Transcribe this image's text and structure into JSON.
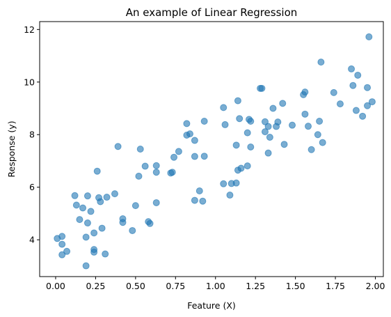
{
  "chart_data": {
    "type": "scatter",
    "title": "An example of Linear Regression",
    "xlabel": "Feature (X)",
    "ylabel": "Response (y)",
    "xlim": [
      -0.1,
      2.05
    ],
    "ylim": [
      2.6,
      12.3
    ],
    "xticks": [
      0.0,
      0.25,
      0.5,
      0.75,
      1.0,
      1.25,
      1.5,
      1.75,
      2.0
    ],
    "xtick_labels": [
      "0.00",
      "0.25",
      "0.50",
      "0.75",
      "1.00",
      "1.25",
      "1.50",
      "1.75",
      "2.00"
    ],
    "yticks": [
      4,
      6,
      8,
      10,
      12
    ],
    "ytick_labels": [
      "4",
      "6",
      "8",
      "10",
      "12"
    ],
    "grid": false,
    "color": "#1f77b4",
    "series": [
      {
        "points": [
          [
            0.01,
            4.05
          ],
          [
            0.04,
            4.13
          ],
          [
            0.04,
            3.83
          ],
          [
            0.04,
            3.43
          ],
          [
            0.07,
            3.56
          ],
          [
            0.12,
            5.68
          ],
          [
            0.13,
            5.32
          ],
          [
            0.15,
            4.77
          ],
          [
            0.17,
            5.21
          ],
          [
            0.19,
            4.1
          ],
          [
            0.19,
            3.01
          ],
          [
            0.2,
            5.67
          ],
          [
            0.2,
            4.64
          ],
          [
            0.22,
            5.08
          ],
          [
            0.24,
            4.26
          ],
          [
            0.24,
            3.63
          ],
          [
            0.24,
            3.53
          ],
          [
            0.26,
            6.61
          ],
          [
            0.27,
            5.6
          ],
          [
            0.28,
            5.45
          ],
          [
            0.29,
            4.44
          ],
          [
            0.31,
            3.46
          ],
          [
            0.32,
            5.62
          ],
          [
            0.37,
            5.75
          ],
          [
            0.39,
            7.55
          ],
          [
            0.42,
            4.8
          ],
          [
            0.42,
            4.66
          ],
          [
            0.48,
            4.35
          ],
          [
            0.5,
            5.3
          ],
          [
            0.52,
            6.42
          ],
          [
            0.53,
            7.45
          ],
          [
            0.56,
            6.8
          ],
          [
            0.58,
            4.69
          ],
          [
            0.59,
            4.62
          ],
          [
            0.63,
            6.57
          ],
          [
            0.63,
            6.82
          ],
          [
            0.63,
            5.41
          ],
          [
            0.72,
            6.54
          ],
          [
            0.73,
            6.57
          ],
          [
            0.74,
            7.14
          ],
          [
            0.77,
            7.36
          ],
          [
            0.82,
            7.98
          ],
          [
            0.82,
            8.42
          ],
          [
            0.84,
            8.03
          ],
          [
            0.87,
            7.78
          ],
          [
            0.87,
            7.17
          ],
          [
            0.87,
            5.5
          ],
          [
            0.9,
            5.86
          ],
          [
            0.92,
            5.47
          ],
          [
            0.93,
            7.18
          ],
          [
            0.93,
            8.51
          ],
          [
            1.05,
            9.03
          ],
          [
            1.05,
            6.13
          ],
          [
            1.06,
            8.38
          ],
          [
            1.09,
            5.7
          ],
          [
            1.1,
            6.14
          ],
          [
            1.13,
            6.16
          ],
          [
            1.13,
            7.6
          ],
          [
            1.14,
            6.65
          ],
          [
            1.14,
            9.29
          ],
          [
            1.15,
            8.61
          ],
          [
            1.16,
            6.72
          ],
          [
            1.2,
            6.81
          ],
          [
            1.2,
            8.07
          ],
          [
            1.21,
            8.58
          ],
          [
            1.22,
            8.51
          ],
          [
            1.22,
            7.53
          ],
          [
            1.28,
            9.76
          ],
          [
            1.29,
            9.76
          ],
          [
            1.31,
            8.49
          ],
          [
            1.31,
            8.11
          ],
          [
            1.33,
            8.31
          ],
          [
            1.33,
            7.3
          ],
          [
            1.34,
            7.9
          ],
          [
            1.36,
            9.0
          ],
          [
            1.38,
            8.31
          ],
          [
            1.39,
            8.48
          ],
          [
            1.42,
            9.19
          ],
          [
            1.43,
            7.63
          ],
          [
            1.48,
            8.36
          ],
          [
            1.55,
            9.52
          ],
          [
            1.56,
            9.62
          ],
          [
            1.56,
            8.78
          ],
          [
            1.58,
            8.32
          ],
          [
            1.6,
            7.43
          ],
          [
            1.64,
            8.0
          ],
          [
            1.65,
            8.51
          ],
          [
            1.66,
            10.76
          ],
          [
            1.67,
            7.7
          ],
          [
            1.74,
            9.6
          ],
          [
            1.78,
            9.17
          ],
          [
            1.85,
            10.5
          ],
          [
            1.86,
            9.87
          ],
          [
            1.88,
            8.92
          ],
          [
            1.89,
            10.26
          ],
          [
            1.92,
            8.7
          ],
          [
            1.95,
            9.79
          ],
          [
            1.95,
            9.1
          ],
          [
            1.96,
            11.72
          ],
          [
            1.98,
            9.25
          ]
        ]
      }
    ]
  }
}
